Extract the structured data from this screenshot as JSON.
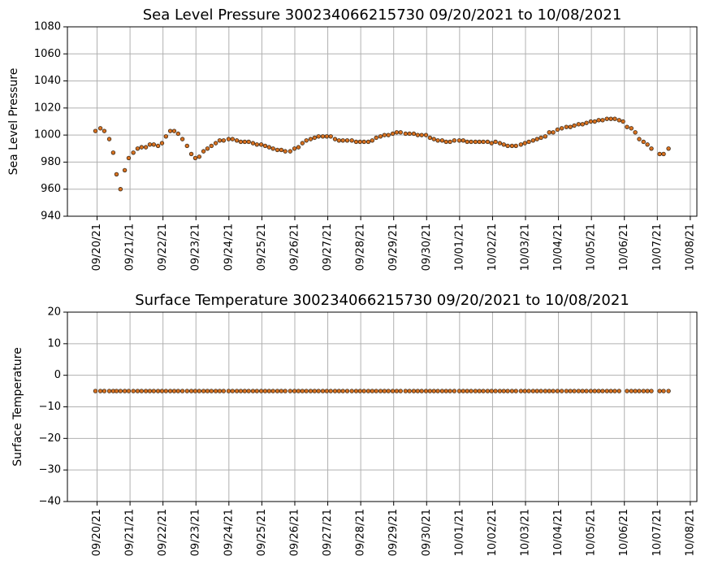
{
  "chart_data": [
    {
      "type": "scatter",
      "title": "Sea Level Pressure 300234066215730  09/20/2021 to 10/08/2021",
      "ylabel": "Sea Level Pressure",
      "x": [
        -0.05,
        0.1,
        0.22,
        0.37,
        0.49,
        0.59,
        0.71,
        0.84,
        0.96,
        1.1,
        1.23,
        1.35,
        1.48,
        1.6,
        1.72,
        1.85,
        1.97,
        2.09,
        2.22,
        2.34,
        2.46,
        2.59,
        2.73,
        2.86,
        2.98,
        3.1,
        3.23,
        3.35,
        3.47,
        3.6,
        3.72,
        3.84,
        3.99,
        4.11,
        4.24,
        4.36,
        4.48,
        4.6,
        4.73,
        4.85,
        4.98,
        5.1,
        5.22,
        5.34,
        5.47,
        5.59,
        5.71,
        5.86,
        5.99,
        6.11,
        6.23,
        6.35,
        6.48,
        6.6,
        6.72,
        6.85,
        6.97,
        7.09,
        7.22,
        7.34,
        7.46,
        7.59,
        7.73,
        7.86,
        7.98,
        8.1,
        8.23,
        8.35,
        8.47,
        8.6,
        8.72,
        8.84,
        8.97,
        9.09,
        9.21,
        9.36,
        9.48,
        9.61,
        9.73,
        9.85,
        9.98,
        10.1,
        10.22,
        10.34,
        10.47,
        10.59,
        10.71,
        10.84,
        10.99,
        11.11,
        11.23,
        11.35,
        11.48,
        11.6,
        11.72,
        11.85,
        11.97,
        12.09,
        12.22,
        12.34,
        12.46,
        12.59,
        12.71,
        12.86,
        12.98,
        13.1,
        13.23,
        13.35,
        13.47,
        13.6,
        13.72,
        13.84,
        13.97,
        14.1,
        14.24,
        14.36,
        14.48,
        14.61,
        14.73,
        14.85,
        14.98,
        15.1,
        15.22,
        15.34,
        15.47,
        15.59,
        15.71,
        15.84,
        15.96,
        16.08,
        16.21,
        16.33,
        16.45,
        16.58,
        16.7,
        16.82,
        17.07,
        17.19,
        17.34
      ],
      "values": [
        1003,
        1005,
        1003,
        997,
        987,
        971,
        960,
        974,
        983,
        987,
        990,
        991,
        991,
        993,
        993,
        992,
        994,
        999,
        1003,
        1003,
        1001,
        997,
        992,
        986,
        983,
        984,
        988,
        990,
        992,
        994,
        996,
        996,
        997,
        997,
        996,
        995,
        995,
        995,
        994,
        993,
        993,
        992,
        991,
        990,
        989,
        989,
        988,
        988,
        990,
        991,
        994,
        996,
        997,
        998,
        999,
        999,
        999,
        999,
        997,
        996,
        996,
        996,
        996,
        995,
        995,
        995,
        995,
        996,
        998,
        999,
        1000,
        1000,
        1001,
        1002,
        1002,
        1001,
        1001,
        1001,
        1000,
        1000,
        1000,
        998,
        997,
        996,
        996,
        995,
        995,
        996,
        996,
        996,
        995,
        995,
        995,
        995,
        995,
        995,
        994,
        995,
        994,
        993,
        992,
        992,
        992,
        993,
        994,
        995,
        996,
        997,
        998,
        999,
        1002,
        1002,
        1004,
        1005,
        1006,
        1006,
        1007,
        1008,
        1008,
        1009,
        1010,
        1010,
        1011,
        1011,
        1012,
        1012,
        1012,
        1011,
        1010,
        1006,
        1005,
        1002,
        997,
        995,
        993,
        990,
        986,
        986,
        990
      ],
      "color": "#d9711f",
      "edgecolor": "#3a2a1a",
      "grid": true,
      "xlim": [
        -0.9,
        18.2
      ],
      "xticks": [
        {
          "value": 0,
          "label": "09/20/21"
        },
        {
          "value": 1,
          "label": "09/21/21"
        },
        {
          "value": 2,
          "label": "09/22/21"
        },
        {
          "value": 3,
          "label": "09/23/21"
        },
        {
          "value": 4,
          "label": "09/24/21"
        },
        {
          "value": 5,
          "label": "09/25/21"
        },
        {
          "value": 6,
          "label": "09/26/21"
        },
        {
          "value": 7,
          "label": "09/27/21"
        },
        {
          "value": 8,
          "label": "09/28/21"
        },
        {
          "value": 9,
          "label": "09/29/21"
        },
        {
          "value": 10,
          "label": "09/30/21"
        },
        {
          "value": 11,
          "label": "10/01/21"
        },
        {
          "value": 12,
          "label": "10/02/21"
        },
        {
          "value": 13,
          "label": "10/03/21"
        },
        {
          "value": 14,
          "label": "10/04/21"
        },
        {
          "value": 15,
          "label": "10/05/21"
        },
        {
          "value": 16,
          "label": "10/06/21"
        },
        {
          "value": 17,
          "label": "10/07/21"
        },
        {
          "value": 18,
          "label": "10/08/21"
        }
      ],
      "ylim": [
        940,
        1080
      ],
      "yticks": [
        940,
        960,
        980,
        1000,
        1020,
        1040,
        1060,
        1080
      ]
    },
    {
      "type": "scatter",
      "title": "Surface Temperature 300234066215730  09/20/2021 to 10/08/2021",
      "ylabel": "Surface Temperature",
      "x": [
        -0.05,
        0.1,
        0.22,
        0.37,
        0.49,
        0.59,
        0.71,
        0.84,
        0.96,
        1.1,
        1.23,
        1.35,
        1.48,
        1.6,
        1.72,
        1.85,
        1.97,
        2.09,
        2.22,
        2.34,
        2.46,
        2.59,
        2.73,
        2.86,
        2.98,
        3.1,
        3.23,
        3.35,
        3.47,
        3.6,
        3.72,
        3.84,
        3.99,
        4.11,
        4.24,
        4.36,
        4.48,
        4.6,
        4.73,
        4.85,
        4.98,
        5.1,
        5.22,
        5.34,
        5.47,
        5.59,
        5.71,
        5.86,
        5.99,
        6.11,
        6.23,
        6.35,
        6.48,
        6.6,
        6.72,
        6.85,
        6.97,
        7.09,
        7.22,
        7.34,
        7.46,
        7.59,
        7.73,
        7.86,
        7.98,
        8.1,
        8.23,
        8.35,
        8.47,
        8.6,
        8.72,
        8.84,
        8.97,
        9.09,
        9.21,
        9.36,
        9.48,
        9.61,
        9.73,
        9.85,
        9.98,
        10.1,
        10.22,
        10.34,
        10.47,
        10.59,
        10.71,
        10.84,
        10.99,
        11.11,
        11.23,
        11.35,
        11.48,
        11.6,
        11.72,
        11.85,
        11.97,
        12.09,
        12.22,
        12.34,
        12.46,
        12.59,
        12.71,
        12.86,
        12.98,
        13.1,
        13.23,
        13.35,
        13.47,
        13.6,
        13.72,
        13.84,
        13.97,
        14.1,
        14.24,
        14.36,
        14.48,
        14.61,
        14.73,
        14.85,
        14.98,
        15.1,
        15.22,
        15.34,
        15.47,
        15.59,
        15.71,
        15.84,
        15.96,
        16.08,
        16.21,
        16.33,
        16.45,
        16.58,
        16.7,
        16.82,
        17.07,
        17.19,
        17.34
      ],
      "values": [
        -5,
        -5,
        -5,
        -5,
        -5,
        -5,
        -5,
        -5,
        -5,
        -5,
        -5,
        -5,
        -5,
        -5,
        -5,
        -5,
        -5,
        -5,
        -5,
        -5,
        -5,
        -5,
        -5,
        -5,
        -5,
        -5,
        -5,
        -5,
        -5,
        -5,
        -5,
        -5,
        -5,
        -5,
        -5,
        -5,
        -5,
        -5,
        -5,
        -5,
        -5,
        -5,
        -5,
        -5,
        -5,
        -5,
        -5,
        -5,
        -5,
        -5,
        -5,
        -5,
        -5,
        -5,
        -5,
        -5,
        -5,
        -5,
        -5,
        -5,
        -5,
        -5,
        -5,
        -5,
        -5,
        -5,
        -5,
        -5,
        -5,
        -5,
        -5,
        -5,
        -5,
        -5,
        -5,
        -5,
        -5,
        -5,
        -5,
        -5,
        -5,
        -5,
        -5,
        -5,
        -5,
        -5,
        -5,
        -5,
        -5,
        -5,
        -5,
        -5,
        -5,
        -5,
        -5,
        -5,
        -5,
        -5,
        -5,
        -5,
        -5,
        -5,
        -5,
        -5,
        -5,
        -5,
        -5,
        -5,
        -5,
        -5,
        -5,
        -5,
        -5,
        -5,
        -5,
        -5,
        -5,
        -5,
        -5,
        -5,
        -5,
        -5,
        -5,
        -5,
        -5,
        -5,
        -5,
        -5,
        null,
        -5,
        -5,
        -5,
        -5,
        -5,
        -5,
        -5,
        -5,
        -5,
        -5
      ],
      "color": "#d9711f",
      "edgecolor": "#3a2a1a",
      "grid": true,
      "xlim": [
        -0.9,
        18.2
      ],
      "xticks": [
        {
          "value": 0,
          "label": "09/20/21"
        },
        {
          "value": 1,
          "label": "09/21/21"
        },
        {
          "value": 2,
          "label": "09/22/21"
        },
        {
          "value": 3,
          "label": "09/23/21"
        },
        {
          "value": 4,
          "label": "09/24/21"
        },
        {
          "value": 5,
          "label": "09/25/21"
        },
        {
          "value": 6,
          "label": "09/26/21"
        },
        {
          "value": 7,
          "label": "09/27/21"
        },
        {
          "value": 8,
          "label": "09/28/21"
        },
        {
          "value": 9,
          "label": "09/29/21"
        },
        {
          "value": 10,
          "label": "09/30/21"
        },
        {
          "value": 11,
          "label": "10/01/21"
        },
        {
          "value": 12,
          "label": "10/02/21"
        },
        {
          "value": 13,
          "label": "10/03/21"
        },
        {
          "value": 14,
          "label": "10/04/21"
        },
        {
          "value": 15,
          "label": "10/05/21"
        },
        {
          "value": 16,
          "label": "10/06/21"
        },
        {
          "value": 17,
          "label": "10/07/21"
        },
        {
          "value": 18,
          "label": "10/08/21"
        }
      ],
      "ylim": [
        -40,
        20
      ],
      "yticks": [
        {
          "value": -40,
          "label": "−40"
        },
        {
          "value": -30,
          "label": "−30"
        },
        {
          "value": -20,
          "label": "−20"
        },
        {
          "value": -10,
          "label": "−10"
        },
        0,
        10,
        20
      ]
    }
  ]
}
